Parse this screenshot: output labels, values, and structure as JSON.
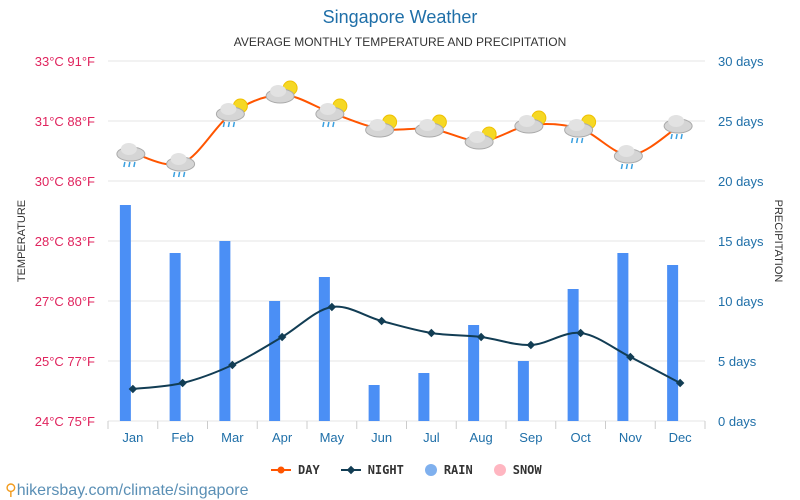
{
  "chart_data": {
    "type": "bar+line",
    "title": "Singapore Weather",
    "subtitle": "AVERAGE MONTHLY TEMPERATURE AND PRECIPITATION",
    "ylabel_left": "TEMPERATURE",
    "ylabel_right": "PRECIPITATION",
    "categories": [
      "Jan",
      "Feb",
      "Mar",
      "Apr",
      "May",
      "Jun",
      "Jul",
      "Aug",
      "Sep",
      "Oct",
      "Nov",
      "Dec"
    ],
    "left_ticks": [
      "24°C 75°F",
      "25°C 77°F",
      "27°C 80°F",
      "28°C 83°F",
      "30°C 86°F",
      "31°C 88°F",
      "33°C 91°F"
    ],
    "left_range_c": [
      24,
      33
    ],
    "right_ticks": [
      "0 days",
      "5 days",
      "10 days",
      "15 days",
      "20 days",
      "25 days",
      "30 days"
    ],
    "right_range_days": [
      0,
      30
    ],
    "grid": true,
    "legend_position": "bottom",
    "series": [
      {
        "name": "DAY",
        "type": "line",
        "axis": "left",
        "color": "#ff5500",
        "values": [
          30.7,
          30.45,
          31.7,
          32.15,
          31.7,
          31.3,
          31.3,
          31.0,
          31.4,
          31.3,
          30.65,
          31.4
        ]
      },
      {
        "name": "NIGHT",
        "type": "line",
        "axis": "left",
        "color": "#123d54",
        "values": [
          24.8,
          24.95,
          25.4,
          26.1,
          26.85,
          26.5,
          26.2,
          26.1,
          25.9,
          26.2,
          25.6,
          24.95
        ]
      },
      {
        "name": "RAIN",
        "type": "bar",
        "axis": "right",
        "color": "#4b8ff5",
        "values": [
          18,
          14,
          15,
          10,
          12,
          3,
          4,
          8,
          5,
          11,
          14,
          13
        ]
      },
      {
        "name": "SNOW",
        "type": "bar",
        "axis": "right",
        "color": "#ffb6c1",
        "values": [
          0,
          0,
          0,
          0,
          0,
          0,
          0,
          0,
          0,
          0,
          0,
          0
        ]
      }
    ],
    "weather_icons": [
      "rain",
      "rain",
      "sun-rain",
      "partly-cloudy",
      "sun-rain",
      "partly-cloudy",
      "partly-cloudy",
      "partly-cloudy",
      "partly-cloudy",
      "sun-rain",
      "rain",
      "rain"
    ]
  },
  "source": "hikersbay.com/climate/singapore",
  "colors": {
    "left_axis": "#e0245e",
    "right_axis": "#1f6fa8"
  }
}
